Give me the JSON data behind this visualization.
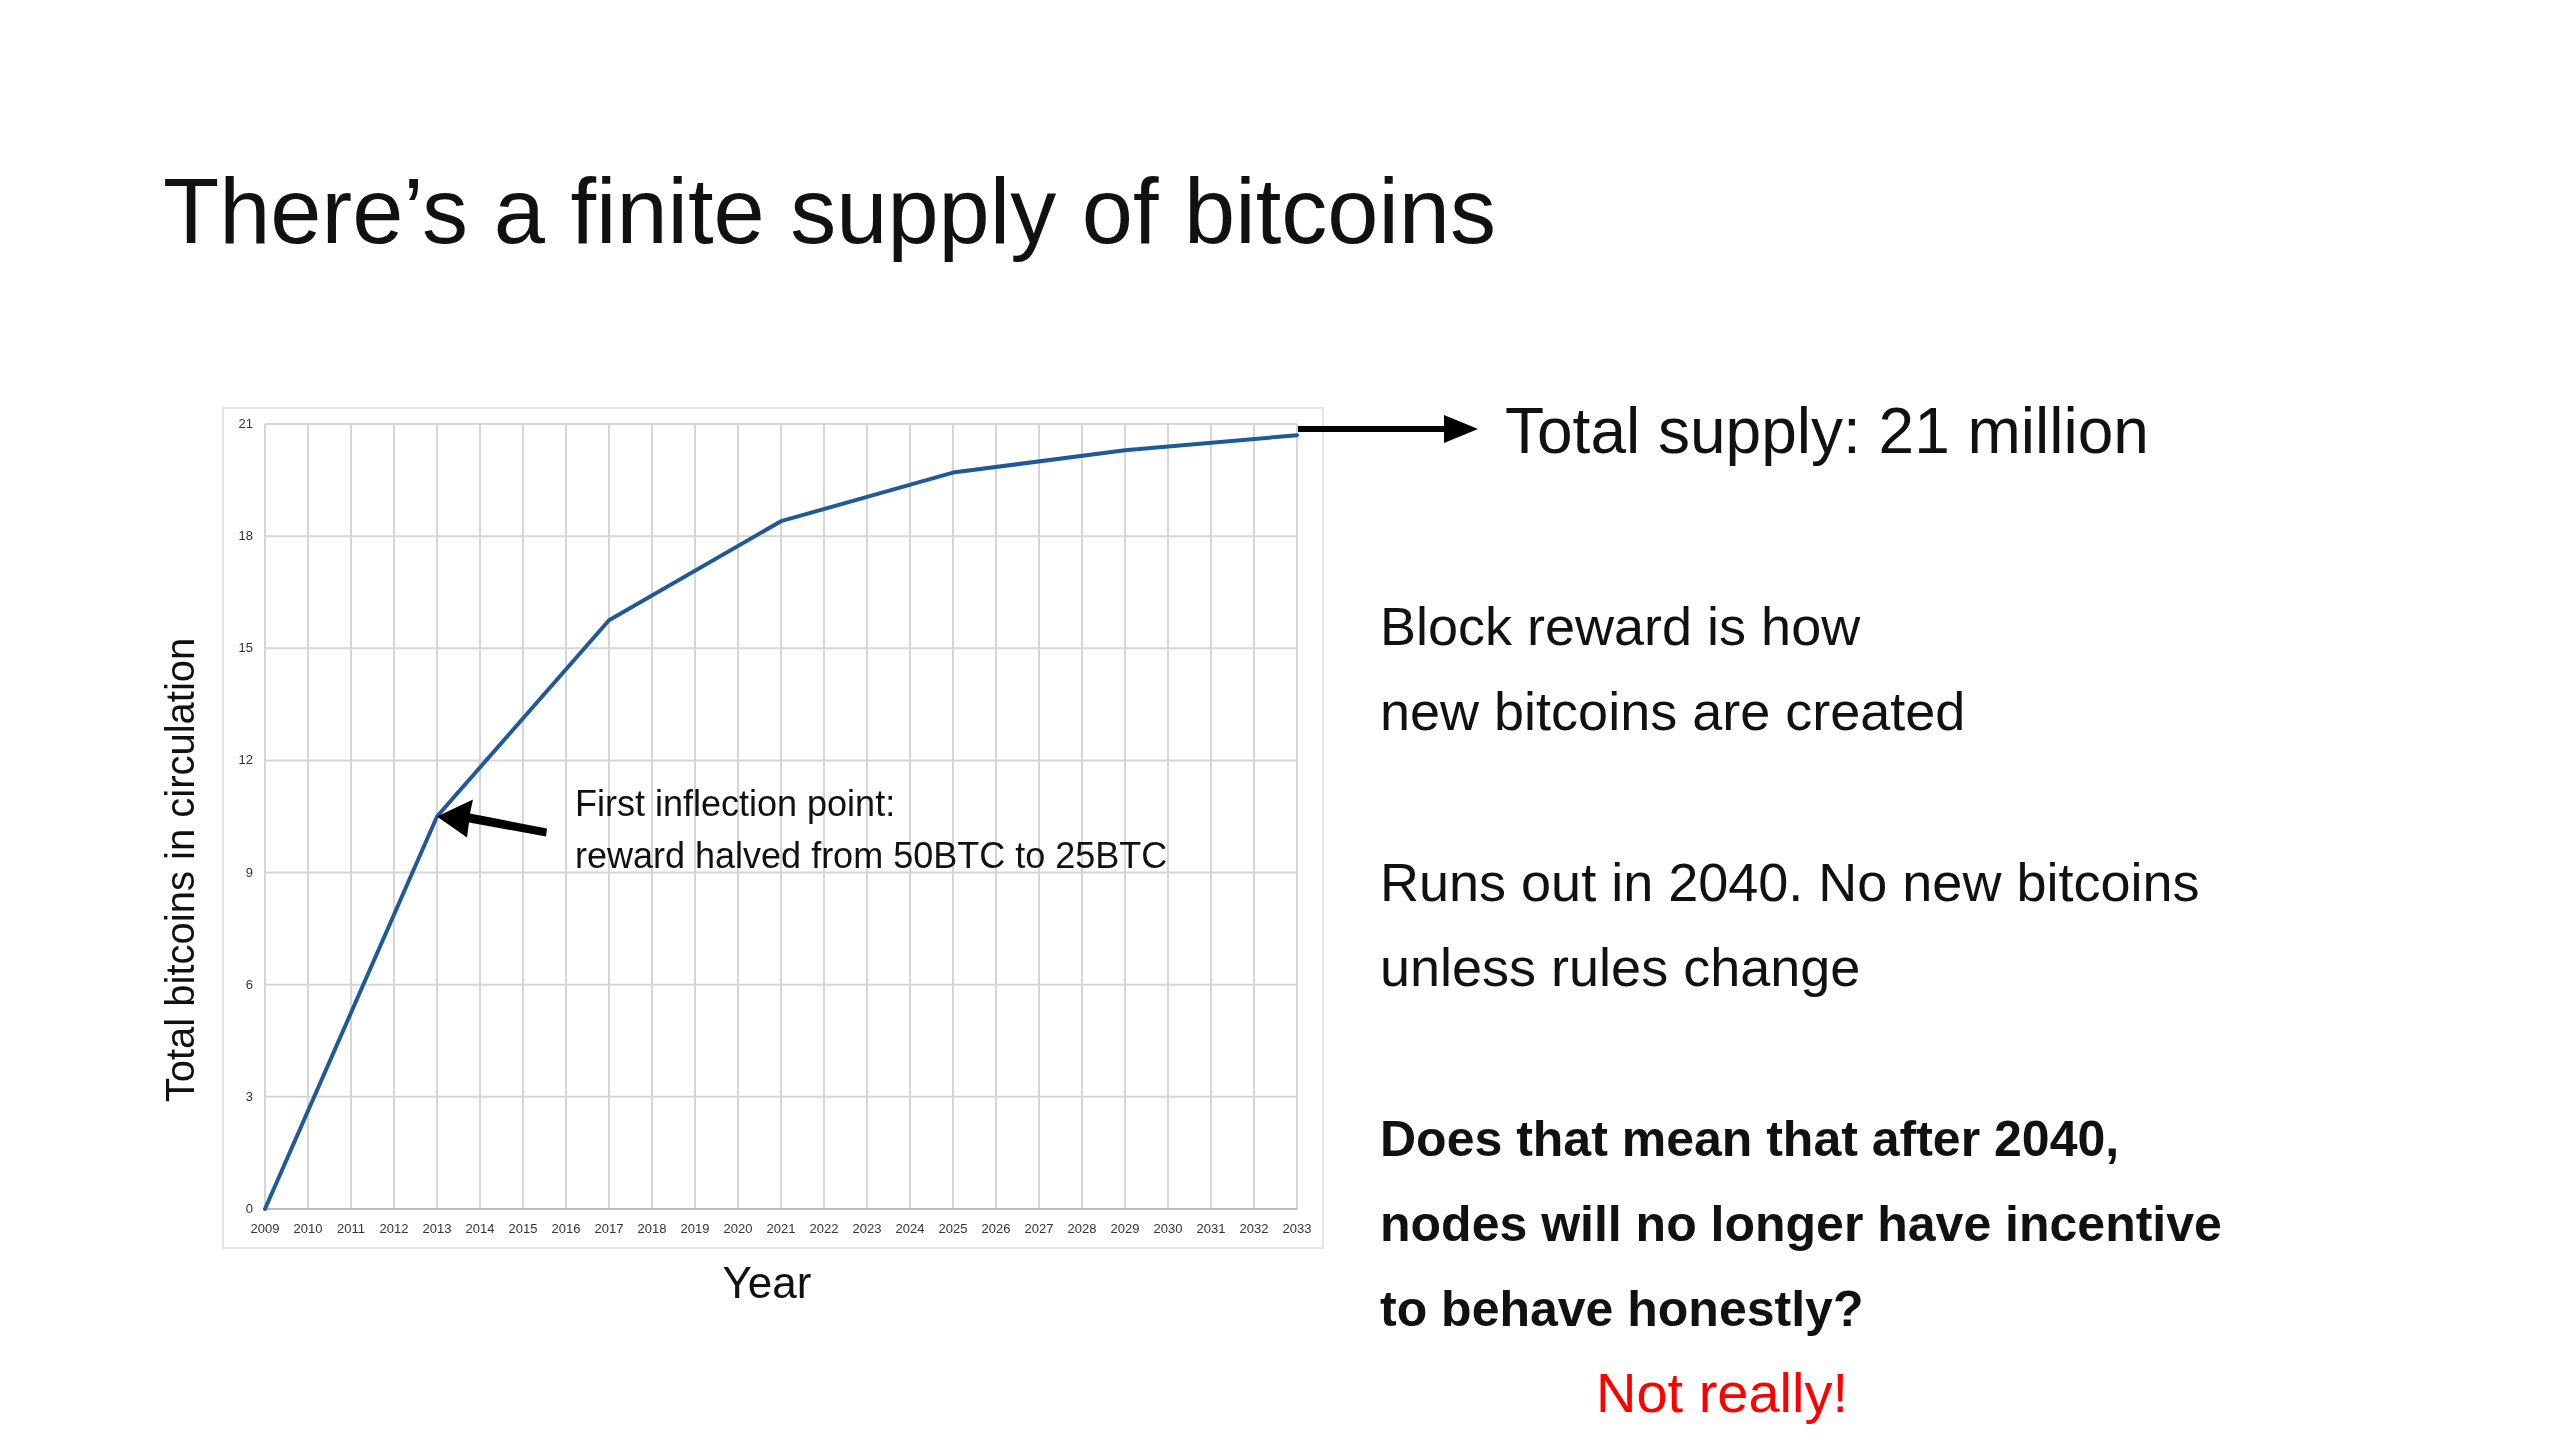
{
  "chart_data": {
    "type": "line",
    "title": "There’s a finite supply of bitcoins",
    "xlabel": "Year",
    "ylabel": "Total bitcoins in circulation",
    "x": [
      2009,
      2013,
      2017,
      2021,
      2025,
      2029,
      2033
    ],
    "series": [
      {
        "color": "#1f5a96",
        "values": [
          0,
          10.5,
          15.75,
          18.4,
          19.7,
          20.3,
          20.7
        ]
      }
    ],
    "xlim": [
      2009,
      2033
    ],
    "xticks": [
      2009,
      2010,
      2011,
      2012,
      2013,
      2014,
      2015,
      2016,
      2017,
      2018,
      2019,
      2020,
      2021,
      2022,
      2023,
      2024,
      2025,
      2026,
      2027,
      2028,
      2029,
      2030,
      2031,
      2032,
      2033
    ],
    "ylim": [
      0,
      21
    ],
    "yticks": [
      0,
      3,
      6,
      9,
      12,
      15,
      18,
      21
    ],
    "grid": true,
    "marker": "none",
    "line_style": "solid",
    "annotations": [
      "First inflection point:\nreward halved from 50BTC to 25BTC",
      "Total supply: 21 million",
      "Block reward is how\nnew bitcoins are created",
      "Runs out in 2040. No new bitcoins\nunless rules change",
      "Does that mean that after 2040,\nnodes will no longer have incentive\nto behave honestly?",
      "Not really!"
    ]
  }
}
